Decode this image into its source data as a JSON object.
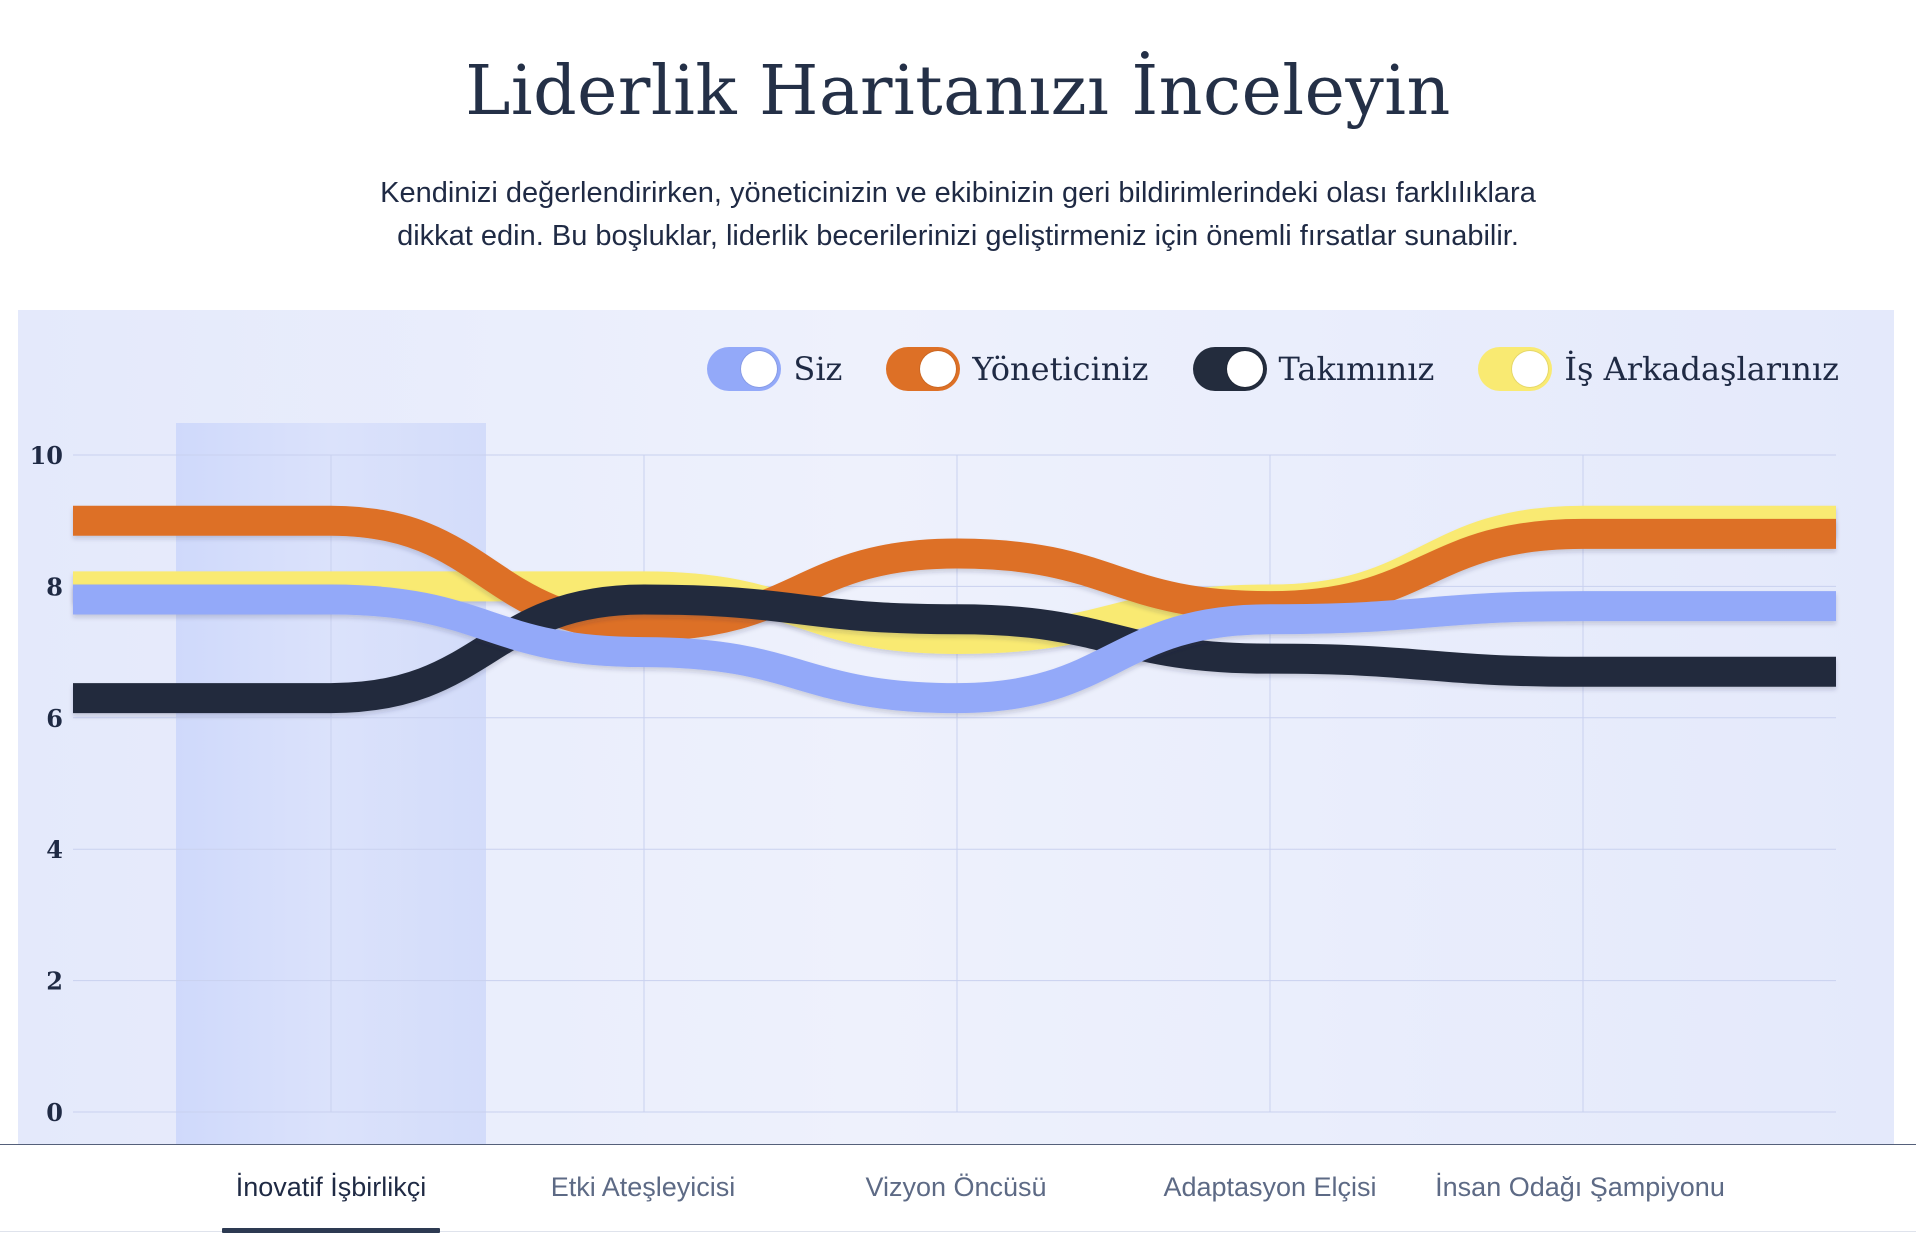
{
  "header": {
    "title": "Liderlik Haritanızı İnceleyin",
    "subtitle_line1": "Kendinizi değerlendirirken, yöneticinizin ve ekibinizin geri bildirimlerindeki olası farklılıklara",
    "subtitle_line2": "dikkat edin. Bu boşluklar, liderlik becerilerinizi geliştirmeniz için önemli fırsatlar sunabilir."
  },
  "legend": [
    {
      "label": "Siz",
      "color": "#93a9f9",
      "enabled": true
    },
    {
      "label": "Yöneticiniz",
      "color": "#dd7026",
      "enabled": true
    },
    {
      "label": "Takımınız",
      "color": "#232c3d",
      "enabled": true
    },
    {
      "label": "İş Arkadaşlarınız",
      "color": "#f9ea72",
      "enabled": true
    }
  ],
  "tabs": [
    {
      "label": "İnovatif İşbirlikçi",
      "active": true
    },
    {
      "label": "Etki Ateşleyicisi",
      "active": false
    },
    {
      "label": "Vizyon Öncüsü",
      "active": false
    },
    {
      "label": "Adaptasyon Elçisi",
      "active": false
    },
    {
      "label": "İnsan Odağı Şampiyonu",
      "active": false
    }
  ],
  "chart_data": {
    "type": "line",
    "title": "",
    "xlabel": "",
    "ylabel": "",
    "ylim": [
      0,
      10
    ],
    "yticks": [
      0,
      2,
      4,
      6,
      8,
      10
    ],
    "categories": [
      "İnovatif İşbirlikçi",
      "Etki Ateşleyicisi",
      "Vizyon Öncüsü",
      "Adaptasyon Elçisi",
      "İnsan Odağı Şampiyonu"
    ],
    "highlighted_category": "İnovatif İşbirlikçi",
    "grid": true,
    "legend_position": "top-right",
    "series": [
      {
        "name": "İş Arkadaşlarınız",
        "color": "#f9ea72",
        "values": [
          8.0,
          8.0,
          7.2,
          7.8,
          9.0
        ]
      },
      {
        "name": "Yöneticiniz",
        "color": "#dd7026",
        "values": [
          9.0,
          7.4,
          8.5,
          7.7,
          8.8
        ]
      },
      {
        "name": "Takımınız",
        "color": "#232c3d",
        "values": [
          6.3,
          7.8,
          7.5,
          6.9,
          6.7
        ]
      },
      {
        "name": "Siz",
        "color": "#93a9f9",
        "values": [
          7.8,
          7.0,
          6.3,
          7.5,
          7.7
        ]
      }
    ]
  }
}
